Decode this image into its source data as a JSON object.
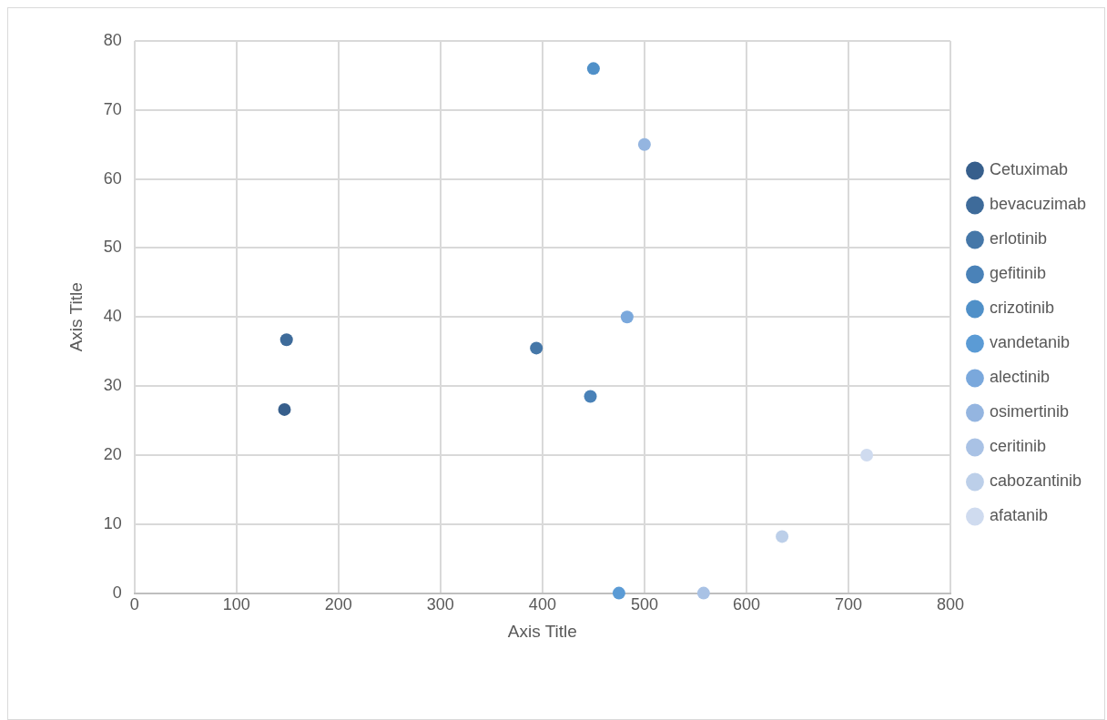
{
  "chart_data": {
    "type": "scatter",
    "xlabel": "Axis Title",
    "ylabel": "Axis Title",
    "xlim": [
      0,
      800
    ],
    "xticks": [
      0,
      100,
      200,
      300,
      400,
      500,
      600,
      700,
      800
    ],
    "ylim": [
      0,
      80
    ],
    "yticks": [
      0,
      10,
      20,
      30,
      40,
      50,
      60,
      70,
      80
    ],
    "grid": true,
    "legend": "right",
    "marker": "circle",
    "series": [
      {
        "name": "Cetuximab",
        "color": "#375f8c",
        "x": [
          147
        ],
        "values": [
          26.6
        ]
      },
      {
        "name": "bevacuzimab",
        "color": "#3e6b9a",
        "x": [
          149
        ],
        "values": [
          36.7
        ]
      },
      {
        "name": "erlotinib",
        "color": "#4577a8",
        "x": [
          394
        ],
        "values": [
          35.5
        ]
      },
      {
        "name": "gefitinib",
        "color": "#4a82b8",
        "x": [
          447
        ],
        "values": [
          28.5
        ]
      },
      {
        "name": "crizotinib",
        "color": "#5090c8",
        "x": [
          450
        ],
        "values": [
          76
        ]
      },
      {
        "name": "vandetanib",
        "color": "#5b9bd5",
        "x": [
          475
        ],
        "values": [
          0
        ]
      },
      {
        "name": "alectinib",
        "color": "#7aa8dc",
        "x": [
          483
        ],
        "values": [
          40
        ]
      },
      {
        "name": "osimertinib",
        "color": "#94b5e0",
        "x": [
          500
        ],
        "values": [
          65
        ]
      },
      {
        "name": "ceritinib",
        "color": "#a9c2e5",
        "x": [
          558
        ],
        "values": [
          0
        ]
      },
      {
        "name": "cabozantinib",
        "color": "#bccfe9",
        "x": [
          635
        ],
        "values": [
          8.2
        ]
      },
      {
        "name": "afatanib",
        "color": "#cfdbef",
        "x": [
          718
        ],
        "values": [
          20
        ]
      }
    ]
  }
}
